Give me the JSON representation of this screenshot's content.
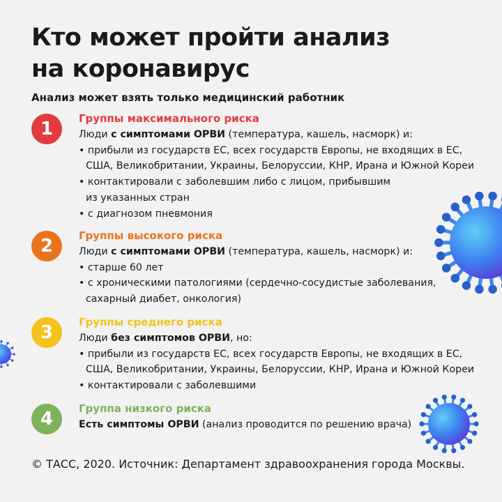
{
  "title_lines": [
    "Кто может пройти анализ",
    "на коронавирус"
  ],
  "subtitle": "Анализ может взять только медицинский работник",
  "colors": {
    "group1": "#e23b3f",
    "group2": "#e8741e",
    "group3": "#f4c21a",
    "group4": "#7db35a",
    "virus": "#3d7ff0"
  },
  "groups": [
    {
      "number": "1",
      "title": "Группы максимального риска",
      "intro_pre": "Люди ",
      "intro_bold": "с симптомами ОРВИ",
      "intro_post": " (температура, кашель, насморк) и:",
      "lines": [
        "• прибыли из государств ЕС, всех государств Европы, не входящих в ЕС,",
        "США, Великобритании, Украины, Белоруссии, КНР, Ирана и Южной Кореи",
        "• контактировали с заболевшим либо с лицом, прибывшим",
        "из указанных стран",
        "• с диагнозом пневмония"
      ]
    },
    {
      "number": "2",
      "title": "Группы высокого риска",
      "intro_pre": "Люди ",
      "intro_bold": "с симптомами ОРВИ",
      "intro_post": " (температура, кашель, насморк) и:",
      "lines": [
        "• старше 60 лет",
        "• с хроническими патологиями (сердечно-сосудистые заболевания,",
        "сахарный диабет, онкология)"
      ]
    },
    {
      "number": "3",
      "title": "Группы среднего риска",
      "intro_pre": "Люди ",
      "intro_bold": "без симптомов ОРВИ",
      "intro_post": ", но:",
      "lines": [
        "• прибыли из государств ЕС, всех государств Европы, не входящих в ЕС,",
        "США, Великобритании, Украины, Белоруссии, КНР, Ирана и Южной Кореи",
        "• контактировали с заболевшими"
      ]
    },
    {
      "number": "4",
      "title": "Группа низкого риска",
      "intro_pre": "",
      "intro_bold": "Есть симптомы ОРВИ",
      "intro_post": " (анализ проводится по решению врача)",
      "lines": []
    }
  ],
  "footer": "© ТАСС, 2020. Источник: Департамент здравоохранения города Москвы."
}
